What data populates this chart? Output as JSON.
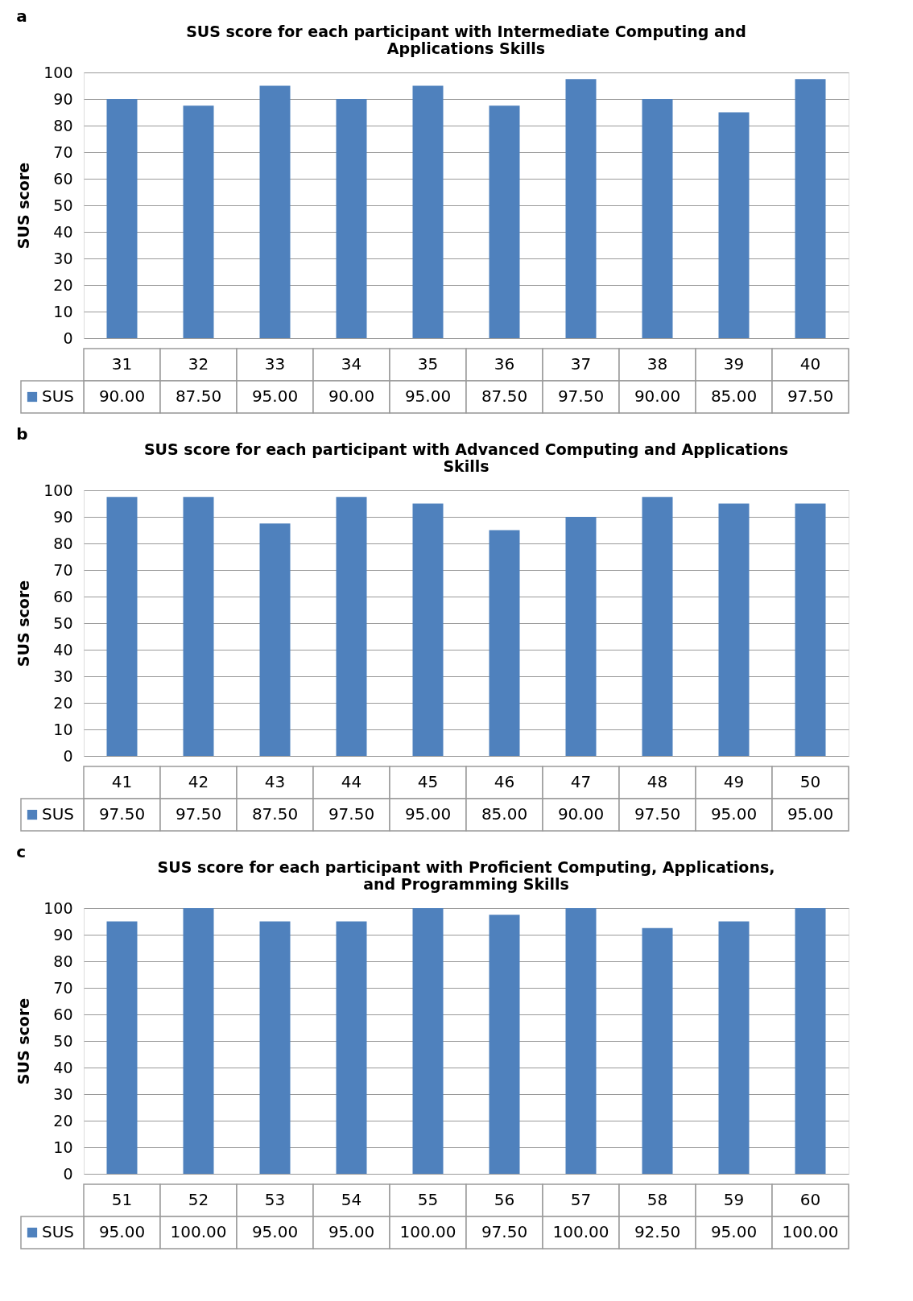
{
  "chart_data": [
    {
      "type": "bar",
      "title": "SUS score for each participant with Intermediate Computing and Applications Skills",
      "ylabel": "SUS score",
      "annotations": [
        "a"
      ],
      "categories": [
        "31",
        "32",
        "33",
        "34",
        "35",
        "36",
        "37",
        "38",
        "39",
        "40"
      ],
      "series": [
        {
          "name": "SUS",
          "color": "#4f81bd",
          "values": [
            90,
            87.5,
            95,
            90,
            95,
            87.5,
            97.5,
            90,
            85,
            97.5
          ],
          "value_labels": [
            "90.00",
            "87.50",
            "95.00",
            "90.00",
            "95.00",
            "87.50",
            "97.50",
            "90.00",
            "85.00",
            "97.50"
          ]
        }
      ],
      "ylim": [
        0,
        100
      ],
      "yticks": [
        0,
        10,
        20,
        30,
        40,
        50,
        60,
        70,
        80,
        90,
        100
      ],
      "grid": "y",
      "legend": "bottom left"
    },
    {
      "type": "bar",
      "title": "SUS score for each participant with Advanced Computing and Applications Skills",
      "ylabel": "SUS score",
      "annotations": [
        "b"
      ],
      "categories": [
        "41",
        "42",
        "43",
        "44",
        "45",
        "46",
        "47",
        "48",
        "49",
        "50"
      ],
      "series": [
        {
          "name": "SUS",
          "color": "#4f81bd",
          "values": [
            97.5,
            97.5,
            87.5,
            97.5,
            95,
            85,
            90,
            97.5,
            95,
            95
          ],
          "value_labels": [
            "97.50",
            "97.50",
            "87.50",
            "97.50",
            "95.00",
            "85.00",
            "90.00",
            "97.50",
            "95.00",
            "95.00"
          ]
        }
      ],
      "ylim": [
        0,
        100
      ],
      "yticks": [
        0,
        10,
        20,
        30,
        40,
        50,
        60,
        70,
        80,
        90,
        100
      ],
      "grid": "y",
      "legend": "bottom left"
    },
    {
      "type": "bar",
      "title": "SUS score for each participant with Proficient Computing, Applications, and Programming Skills",
      "ylabel": "SUS score",
      "annotations": [
        "c"
      ],
      "categories": [
        "51",
        "52",
        "53",
        "54",
        "55",
        "56",
        "57",
        "58",
        "59",
        "60"
      ],
      "series": [
        {
          "name": "SUS",
          "color": "#4f81bd",
          "values": [
            95,
            100,
            95,
            95,
            100,
            97.5,
            100,
            92.5,
            95,
            100
          ],
          "value_labels": [
            "95.00",
            "100.00",
            "95.00",
            "95.00",
            "100.00",
            "97.50",
            "100.00",
            "92.50",
            "95.00",
            "100.00"
          ]
        }
      ],
      "ylim": [
        0,
        100
      ],
      "yticks": [
        0,
        10,
        20,
        30,
        40,
        50,
        60,
        70,
        80,
        90,
        100
      ],
      "grid": "y",
      "legend": "bottom left"
    }
  ]
}
